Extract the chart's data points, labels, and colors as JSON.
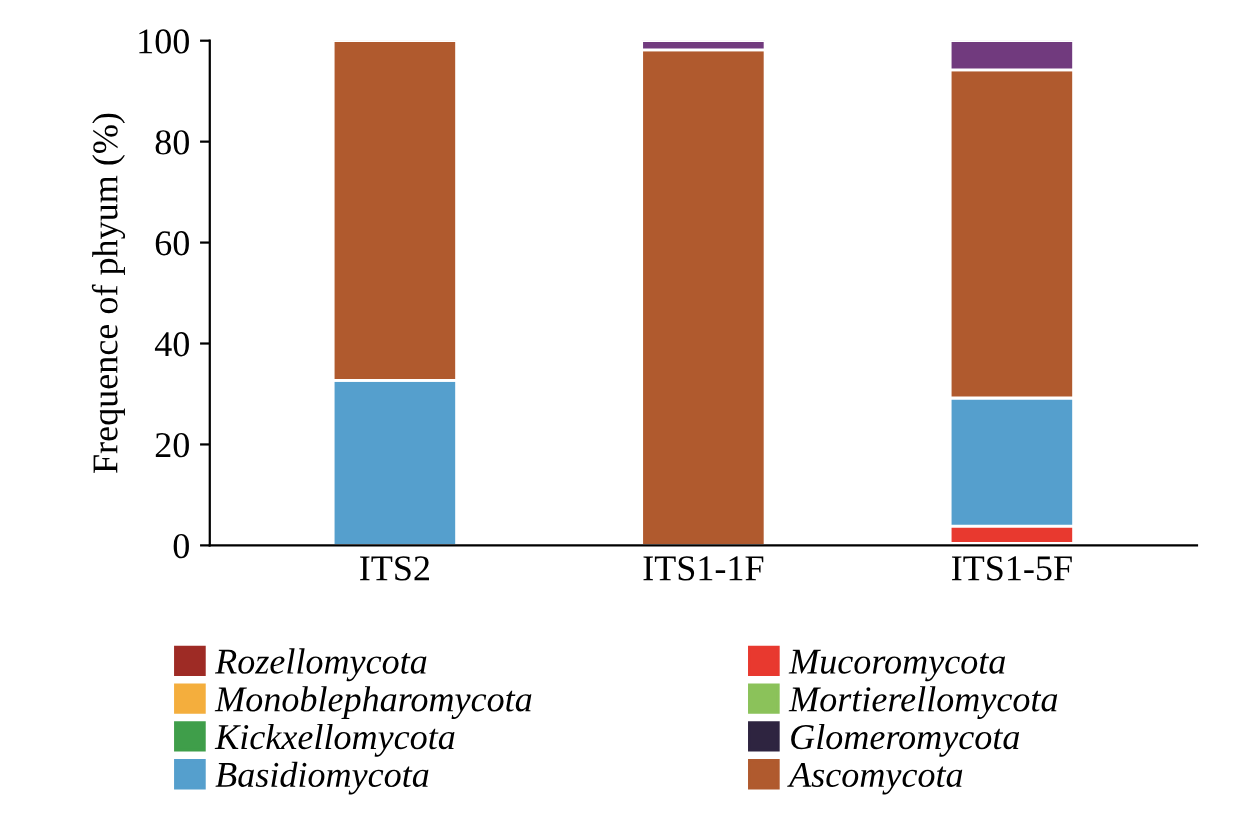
{
  "chart_data": {
    "type": "bar",
    "stacked": true,
    "ylabel": "Frequence of phyum (%)",
    "categories": [
      "ITS2",
      "ITS1-1F",
      "ITS1-5F"
    ],
    "series": [
      {
        "name": "Rozellomycota",
        "color": "#9e2b25",
        "values": [
          0,
          0,
          0.4
        ]
      },
      {
        "name": "Mucoromycota",
        "color": "#e8392f",
        "values": [
          0,
          0,
          3.4
        ]
      },
      {
        "name": "Monoblepharomycota",
        "color": "#f4ae3d",
        "values": [
          0,
          0,
          0
        ]
      },
      {
        "name": "Mortierellomycota",
        "color": "#8bc25a",
        "values": [
          0,
          0,
          0
        ]
      },
      {
        "name": "Kickxellomycota",
        "color": "#3f9e4a",
        "values": [
          0,
          0,
          0
        ]
      },
      {
        "name": "Glomeromycota",
        "color": "#2e2440",
        "values": [
          0,
          0,
          0
        ]
      },
      {
        "name": "Basidiomycota",
        "color": "#559fcd",
        "values": [
          32.7,
          null,
          25.4
        ]
      },
      {
        "name": "Ascomycota",
        "color": "#b05a2e",
        "values": [
          67.3,
          98.2,
          65
        ]
      },
      {
        "color": "#713a7e",
        "values": [
          0,
          1.8,
          5.8
        ]
      }
    ],
    "ylim": [
      0,
      100
    ],
    "yticks": [
      0,
      20,
      40,
      60,
      80,
      100
    ],
    "grid": false,
    "legend": "bottom"
  }
}
